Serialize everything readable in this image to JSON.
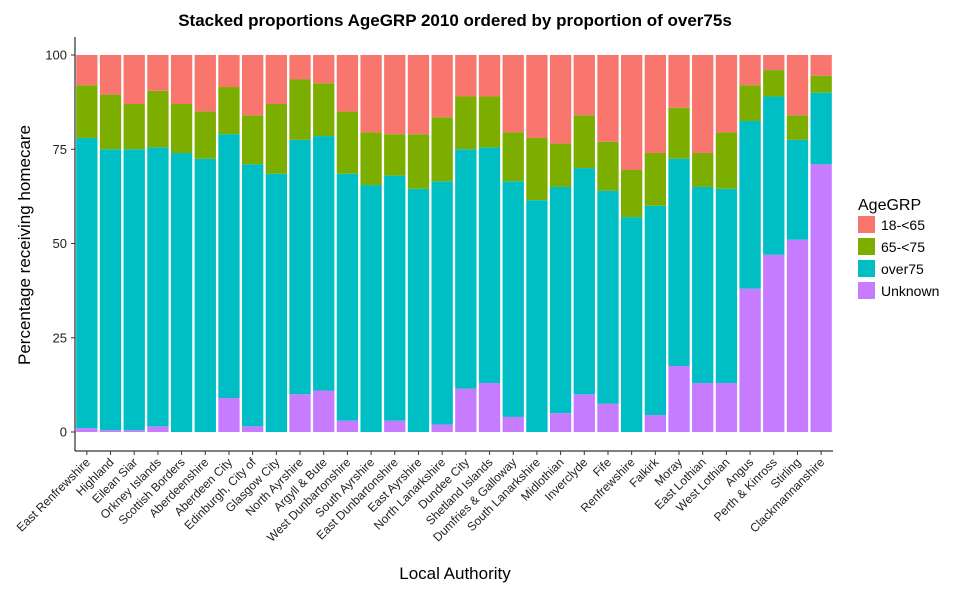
{
  "chart_data": {
    "type": "bar",
    "stacked": true,
    "title": "Stacked proportions AgeGRP 2010 ordered by proportion of over75s",
    "xlabel": "Local Authority",
    "ylabel": "Percentage receiving homecare",
    "ylim": [
      0,
      100
    ],
    "yticks": [
      0,
      25,
      50,
      75,
      100
    ],
    "legend": {
      "title": "AgeGRP",
      "position": "right"
    },
    "categories": [
      "East Renfrewshire",
      "Highland",
      "Eilean Siar",
      "Orkney Islands",
      "Scottish Borders",
      "Aberdeenshire",
      "Aberdeen City",
      "Edinburgh, City of",
      "Glasgow City",
      "North Ayrshire",
      "Argyll & Bute",
      "West Dunbartonshire",
      "South Ayrshire",
      "East Dunbartonshire",
      "East Ayrshire",
      "North Lanarkshire",
      "Dundee City",
      "Shetland Islands",
      "Dumfries & Galloway",
      "South Lanarkshire",
      "Midlothian",
      "Inverclyde",
      "Fife",
      "Renfrewshire",
      "Falkirk",
      "Moray",
      "East Lothian",
      "West Lothian",
      "Angus",
      "Perth & Kinross",
      "Stirling",
      "Clackmannanshire"
    ],
    "series": [
      {
        "name": "Unknown",
        "color": "#C77CFF",
        "values": [
          1,
          0.5,
          0.5,
          1.5,
          0,
          0,
          9,
          1.5,
          0,
          10,
          11,
          3,
          0,
          3,
          0,
          2,
          11.5,
          13,
          4,
          0,
          5,
          10,
          7.5,
          0,
          4.5,
          17.5,
          13,
          13,
          38,
          47,
          51,
          71
        ]
      },
      {
        "name": "over75",
        "color": "#00BFC4",
        "values": [
          77,
          74.5,
          74.5,
          74,
          74,
          72.5,
          70,
          69.5,
          68.5,
          67.5,
          67.5,
          65.5,
          65.5,
          65,
          64.5,
          64.5,
          63.5,
          62.5,
          62.5,
          61.5,
          60,
          60,
          56.5,
          57,
          55.5,
          55,
          52,
          51.5,
          44.5,
          42,
          26.5,
          19
        ]
      },
      {
        "name": "65-<75",
        "color": "#7CAE00",
        "values": [
          14,
          14.5,
          12,
          15,
          13,
          12.5,
          12.5,
          13,
          18.5,
          16,
          14,
          16.5,
          14,
          11,
          14.5,
          17,
          14,
          13.5,
          13,
          16.5,
          11.5,
          14,
          13,
          12.5,
          14,
          13.5,
          9,
          15,
          9.5,
          7,
          6.5,
          4.5
        ]
      },
      {
        "name": "18-<65",
        "color": "#F8766D",
        "values": [
          8,
          10.5,
          13,
          9.5,
          13,
          15,
          8.5,
          16,
          13,
          6.5,
          7.5,
          15,
          20.5,
          21,
          21,
          16.5,
          11,
          11,
          20.5,
          22,
          23.5,
          16,
          23,
          30.5,
          26,
          14,
          26,
          20.5,
          8,
          4,
          16,
          5.5
        ]
      }
    ],
    "legend_order": [
      "18-<65",
      "65-<75",
      "over75",
      "Unknown"
    ],
    "grid": false
  }
}
